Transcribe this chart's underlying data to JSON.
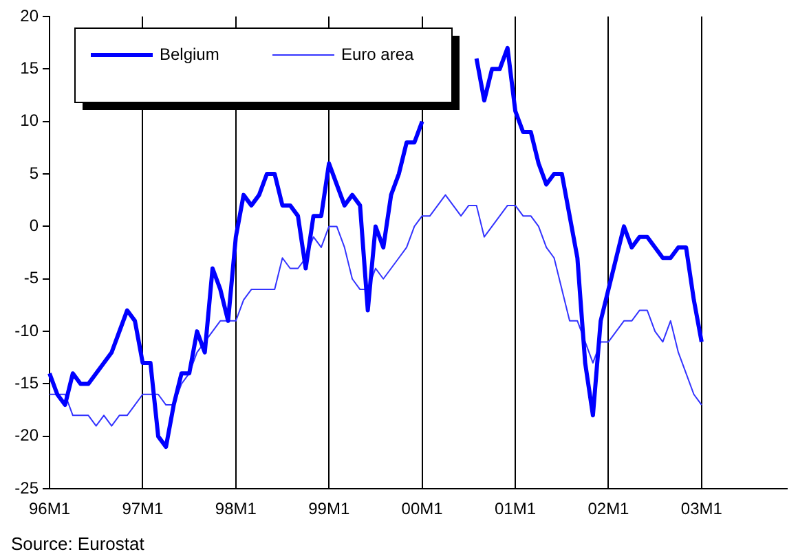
{
  "chart_data": {
    "type": "line",
    "categories": [
      "96M1",
      null,
      null,
      null,
      null,
      null,
      null,
      null,
      null,
      null,
      null,
      null,
      "97M1",
      null,
      null,
      null,
      null,
      null,
      null,
      null,
      null,
      null,
      null,
      null,
      "98M1",
      null,
      null,
      null,
      null,
      null,
      null,
      null,
      null,
      null,
      null,
      null,
      "99M1",
      null,
      null,
      null,
      null,
      null,
      null,
      null,
      null,
      null,
      null,
      null,
      "00M1",
      null,
      null,
      null,
      null,
      null,
      null,
      null,
      null,
      null,
      null,
      null,
      "01M1",
      null,
      null,
      null,
      null,
      null,
      null,
      null,
      null,
      null,
      null,
      null,
      "02M1",
      null,
      null,
      null,
      null,
      null,
      null,
      null,
      null,
      null,
      null,
      null,
      "03M1",
      null,
      null,
      null,
      null,
      null,
      null,
      null,
      null,
      null,
      null,
      null
    ],
    "series": [
      {
        "name": "Belgium",
        "color": "#0000ff",
        "values": [
          -14,
          -16,
          -17,
          -14,
          -15,
          -15,
          -14,
          -13,
          -12,
          -10,
          -8,
          -9,
          -13,
          -13,
          -20,
          -21,
          -17,
          -14,
          -14,
          -10,
          -12,
          -4,
          -6,
          -9,
          -1,
          3,
          2,
          3,
          5,
          5,
          2,
          2,
          1,
          -4,
          1,
          1,
          6,
          4,
          2,
          3,
          2,
          -8,
          0,
          -2,
          3,
          5,
          8,
          8,
          10,
          null,
          null,
          null,
          null,
          null,
          null,
          16,
          12,
          15,
          15,
          17,
          11,
          9,
          9,
          6,
          4,
          5,
          5,
          1,
          -3,
          -13,
          -18,
          -9,
          -6,
          -3,
          0,
          -2,
          -1,
          -1,
          -2,
          -3,
          -3,
          -2,
          -2,
          -7,
          -11,
          null,
          null,
          null,
          null,
          null,
          null,
          null,
          null,
          null,
          null,
          null
        ]
      },
      {
        "name": "Euro area",
        "color": "#3333ff",
        "values": [
          -16,
          -16,
          -16,
          -18,
          -18,
          -18,
          -19,
          -18,
          -19,
          -18,
          -18,
          -17,
          -16,
          -16,
          -16,
          -17,
          -17,
          -15,
          -14,
          -12,
          -11,
          -10,
          -9,
          -9,
          -9,
          -7,
          -6,
          -6,
          -6,
          -6,
          -3,
          -4,
          -4,
          -3,
          -1,
          -2,
          0,
          0,
          -2,
          -5,
          -6,
          -6,
          -4,
          -5,
          -4,
          -3,
          -2,
          0,
          1,
          1,
          2,
          3,
          2,
          1,
          2,
          2,
          -1,
          0,
          1,
          2,
          2,
          1,
          1,
          0,
          -2,
          -3,
          -6,
          -9,
          -9,
          -11,
          -13,
          -11,
          -11,
          -10,
          -9,
          -9,
          -8,
          -8,
          -10,
          -11,
          -9,
          -12,
          -14,
          -16,
          -17,
          null,
          null,
          null,
          null,
          null,
          null,
          null,
          null,
          null,
          null,
          null
        ]
      }
    ],
    "ylim": [
      -25,
      20
    ],
    "yticks": [
      -25,
      -20,
      -15,
      -10,
      -5,
      0,
      5,
      10,
      15,
      20
    ],
    "grid": "x",
    "legend": "top left",
    "marker": "none",
    "line_style": "solid",
    "annotations": [
      "Source: Eurostat"
    ]
  }
}
